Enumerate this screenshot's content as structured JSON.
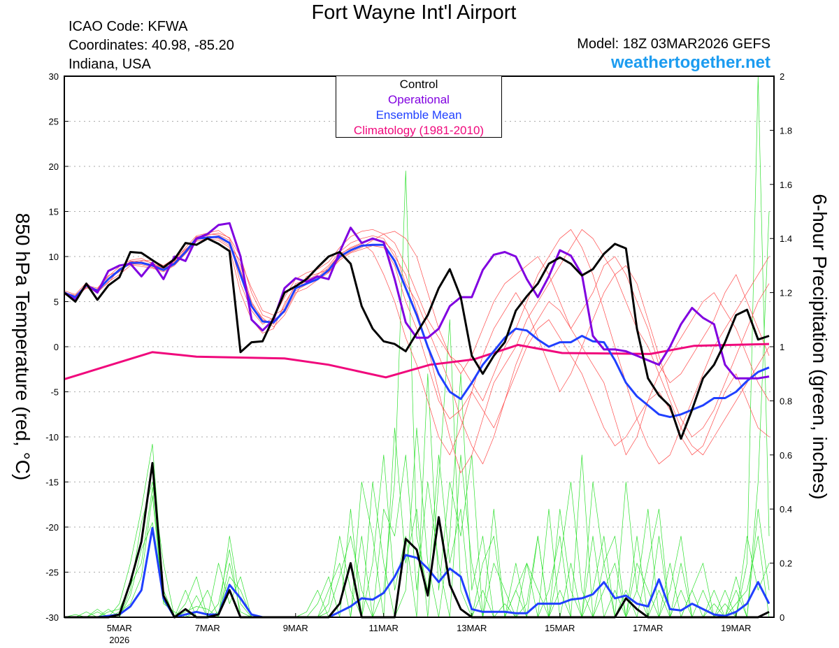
{
  "header": {
    "title": "Fort Wayne Int'l Airport",
    "icao": "ICAO Code: KFWA",
    "coordinates": "Coordinates: 40.98, -85.20",
    "region": "Indiana, USA",
    "model": "Model: 18Z 03MAR2026 GEFS",
    "site": "weathertogether.net"
  },
  "legend": {
    "control": "Control",
    "operational": "Operational",
    "mean": "Ensemble Mean",
    "climatology": "Climatology (1981-2010)"
  },
  "colors": {
    "control": "#000000",
    "operational": "#8000e0",
    "mean": "#2040ff",
    "climatology": "#f0087c",
    "member_temp": "#ff4a4a",
    "member_precip": "#2ee02e",
    "site": "#1c9cf0"
  },
  "chart_data": {
    "type": "line",
    "title": "Fort Wayne Int'l Airport",
    "ylabel": "850 hPa Temperature (red, °C)",
    "ylabel_right": "6-hour Precipitation (green, inches)",
    "ylim": [
      -30,
      30
    ],
    "ylim_right": [
      0,
      2
    ],
    "yticks": [
      "30",
      "25",
      "20",
      "15",
      "10",
      "5",
      "0",
      "-5",
      "-10",
      "-15",
      "-20",
      "-25",
      "-30"
    ],
    "yticks_right": [
      "2",
      "1.8",
      "1.6",
      "1.4",
      "1.2",
      "1",
      "0.8",
      "0.6",
      "0.4",
      "0.2",
      "0"
    ],
    "x_start": "03MAR2026 18Z",
    "x_step_hours": 6,
    "x_range_days": [
      0,
      16
    ],
    "xticks": [
      {
        "label": "5MAR",
        "day": 1.25,
        "sub": "2026"
      },
      {
        "label": "7MAR",
        "day": 3.25
      },
      {
        "label": "9MAR",
        "day": 5.25
      },
      {
        "label": "11MAR",
        "day": 7.25
      },
      {
        "label": "13MAR",
        "day": 9.25
      },
      {
        "label": "15MAR",
        "day": 11.25
      },
      {
        "label": "17MAR",
        "day": 13.25
      },
      {
        "label": "19MAR",
        "day": 15.25
      }
    ],
    "grid": true,
    "legend_position": "top-center",
    "temperature": {
      "control": [
        6,
        5,
        7,
        5.2,
        6.8,
        7.7,
        10.5,
        10.4,
        9.6,
        8.8,
        9.7,
        11.5,
        11.3,
        12,
        11.4,
        10.6,
        -0.6,
        0.5,
        0.6,
        3.2,
        6,
        6.7,
        7.5,
        8.8,
        10,
        10.5,
        9.2,
        4.5,
        2,
        0.6,
        0.3,
        -0.5,
        1.5,
        3.5,
        6.5,
        8.6,
        5.5,
        -1,
        -3,
        -1,
        0.5,
        4,
        5.6,
        7,
        9.2,
        9.9,
        9.2,
        7.9,
        8.6,
        10.3,
        11.4,
        10.9,
        2,
        -3.5,
        -5.4,
        -6.6,
        -10.2,
        -7,
        -3.5,
        -2,
        0.5,
        3.5,
        4.1,
        0.8,
        1.2
      ],
      "operational": [
        6,
        5.2,
        6.9,
        6,
        8.4,
        9,
        9.2,
        7.8,
        9.3,
        7.5,
        10,
        9.5,
        12,
        12.5,
        13.5,
        13.7,
        10,
        3,
        1.8,
        3,
        6.5,
        7.6,
        7.2,
        7.8,
        7.5,
        10.5,
        13.2,
        11.5,
        12,
        11.6,
        7.5,
        2.7,
        1,
        1,
        2,
        4.5,
        5.5,
        5.5,
        8.5,
        10.2,
        10.5,
        10,
        7.5,
        5.5,
        7.8,
        10.7,
        10.1,
        8,
        1.2,
        -0.3,
        -0.3,
        -0.5,
        -1,
        -1.5,
        -2,
        0,
        2.5,
        4.3,
        3.2,
        2.5,
        -2,
        -3.5,
        -3.5,
        -3.5,
        -3.3
      ],
      "mean": [
        6,
        5.5,
        6.8,
        6.2,
        7.5,
        8.5,
        9.3,
        9.3,
        9,
        8.5,
        9.2,
        10.5,
        12,
        12.1,
        12.2,
        11.5,
        8,
        4.5,
        2.8,
        2.7,
        4,
        6.5,
        7,
        7.5,
        8.5,
        10,
        10.7,
        11.2,
        11.3,
        11.3,
        9.5,
        6.5,
        3.5,
        0,
        -3,
        -5,
        -5.8,
        -4,
        -2,
        -0.5,
        1,
        2,
        1.8,
        0.8,
        0,
        0.5,
        0.5,
        1.2,
        0.6,
        0.5,
        -1.5,
        -4,
        -5.5,
        -6.5,
        -7.5,
        -7.8,
        -7.5,
        -7,
        -6.5,
        -5.7,
        -5.7,
        -5,
        -3.8,
        -2.8,
        -2.3
      ],
      "climatology": {
        "days": [
          0,
          2,
          3,
          5,
          6,
          7.3,
          8.3,
          9.3,
          10.3,
          11.3,
          13.3,
          14.3,
          16
        ],
        "values": [
          -3.6,
          -0.6,
          -1.1,
          -1.3,
          -2,
          -3.4,
          -2,
          -1.4,
          0.2,
          -0.7,
          -0.8,
          0.1,
          0.3
        ]
      },
      "members": [
        [
          6,
          5.6,
          6.5,
          6.4,
          7.8,
          8.9,
          9.6,
          9.8,
          9.2,
          8.8,
          9.5,
          11,
          12.3,
          12.6,
          12.9,
          12,
          9,
          5,
          3,
          2.5,
          4.5,
          7,
          7.4,
          8,
          9,
          10.5,
          11.5,
          12,
          12.3,
          12,
          10,
          8,
          4,
          0,
          -5,
          -10,
          -14,
          -12,
          -8,
          -4,
          -2,
          0,
          3,
          5,
          7,
          9,
          11,
          13,
          12,
          10,
          8,
          5,
          2,
          0,
          -3,
          -6,
          -9,
          -11,
          -12,
          -10,
          -8,
          -6,
          -4,
          -2,
          0
        ],
        [
          6.2,
          5.8,
          7.1,
          6,
          7.2,
          8,
          9,
          9.5,
          9.6,
          9,
          9.8,
          10.8,
          11.8,
          12.4,
          12.6,
          12.1,
          10,
          6,
          3.5,
          3,
          3.8,
          6,
          6.5,
          7.4,
          8.2,
          9.8,
          10.5,
          11,
          11.8,
          12.5,
          12.8,
          12,
          10,
          6,
          2,
          -1,
          -3,
          -1,
          2,
          5,
          7,
          8,
          9,
          10,
          8,
          5,
          2,
          0,
          -2,
          -4,
          -8,
          -12,
          -10,
          -6,
          -3,
          -1,
          1,
          3,
          5,
          6,
          4,
          2,
          -1,
          -4,
          -6
        ],
        [
          5.8,
          5.2,
          6.6,
          6.1,
          7.1,
          8.6,
          9.1,
          8.9,
          8.7,
          8.3,
          9,
          10.3,
          11.7,
          12,
          11.8,
          11,
          6,
          3,
          1.5,
          2,
          4.8,
          6.8,
          7.2,
          7.7,
          8.8,
          10.2,
          11,
          11.5,
          10.5,
          8,
          5,
          1,
          -2,
          -6,
          -10,
          -12,
          -9,
          -5,
          -1,
          2,
          4,
          6,
          4,
          1,
          -2,
          -5,
          -3,
          0,
          3,
          6,
          8,
          9,
          7,
          3,
          -1,
          -5,
          -8,
          -10,
          -9,
          -7,
          -4,
          -1,
          2,
          5,
          7
        ],
        [
          6.1,
          5.4,
          6.9,
          6.3,
          7.6,
          8.3,
          9.4,
          9.6,
          9.3,
          8.6,
          9.4,
          10.7,
          12.1,
          12.5,
          12.4,
          11.8,
          7,
          4,
          2.5,
          3.2,
          5.5,
          7.5,
          8.2,
          8.6,
          9.4,
          11,
          12.2,
          12.8,
          13,
          12.5,
          11.5,
          9,
          6,
          3,
          1,
          -1,
          -2,
          -4,
          -6,
          -3,
          0,
          2,
          5,
          8,
          10,
          12,
          13,
          11,
          8,
          4,
          0,
          -4,
          -8,
          -11,
          -13,
          -12,
          -9,
          -6,
          -3,
          0,
          2,
          4,
          6,
          8,
          10
        ],
        [
          5.9,
          5.5,
          6.7,
          6.2,
          7.4,
          8.7,
          9.2,
          9.1,
          8.8,
          8.4,
          9.1,
          10.4,
          11.9,
          12.2,
          12,
          11.2,
          9.5,
          6.5,
          4,
          3.5,
          4.2,
          6.2,
          6.9,
          7.6,
          8.3,
          9.6,
          10.4,
          10.8,
          11.2,
          11,
          9,
          5,
          2,
          -2,
          -6,
          -8,
          -7,
          -5,
          -7,
          -9,
          -6,
          -3,
          0,
          2,
          3,
          1,
          -1,
          -3,
          -6,
          -9,
          -11,
          -10,
          -8,
          -6,
          -5,
          -7,
          -10,
          -12,
          -11,
          -8,
          -5,
          -3,
          -6,
          -9,
          -10
        ],
        [
          6,
          5.7,
          6.8,
          6.5,
          7.9,
          8.4,
          9.5,
          9.4,
          9.1,
          8.7,
          9.3,
          10.6,
          12.2,
          12.3,
          12.1,
          11.6,
          8.5,
          4.8,
          3.2,
          2.2,
          3.5,
          5.8,
          7.8,
          8.1,
          8.6,
          10.3,
          10.9,
          11.4,
          12,
          11.7,
          10.5,
          7,
          5,
          2,
          -1,
          -4,
          -8,
          -11,
          -13,
          -10,
          -6,
          -2,
          1,
          3,
          5,
          4,
          2,
          4,
          6,
          9,
          10,
          8,
          5,
          2,
          -2,
          -4,
          -3,
          -1,
          1,
          3,
          6,
          8,
          5,
          2,
          -1
        ]
      ]
    },
    "precipitation": {
      "control": [
        0,
        0,
        0,
        0,
        0,
        0.01,
        0.13,
        0.28,
        0.57,
        0.08,
        0,
        0.03,
        0,
        0,
        0.01,
        0.1,
        0,
        0,
        0,
        0,
        0,
        0,
        0,
        0,
        0,
        0.05,
        0.2,
        0,
        0,
        0,
        0,
        0.29,
        0.25,
        0.08,
        0.37,
        0.12,
        0.03,
        0,
        0,
        0,
        0,
        0,
        0,
        0,
        0,
        0,
        0,
        0,
        0,
        0,
        0,
        0.07,
        0.03,
        0,
        0,
        0,
        0,
        0,
        0,
        0,
        0,
        0,
        0,
        0,
        0.02
      ],
      "mean": [
        0,
        0,
        0,
        0,
        0.005,
        0.01,
        0.04,
        0.1,
        0.33,
        0.07,
        0,
        0.01,
        0.02,
        0.01,
        0.01,
        0.12,
        0.07,
        0.01,
        0,
        0,
        0,
        0,
        0,
        0,
        0,
        0.02,
        0.04,
        0.07,
        0.065,
        0.09,
        0.15,
        0.23,
        0.22,
        0.18,
        0.13,
        0.18,
        0.15,
        0.03,
        0.02,
        0.02,
        0.02,
        0.015,
        0.015,
        0.05,
        0.05,
        0.05,
        0.065,
        0.07,
        0.085,
        0.13,
        0.07,
        0.08,
        0.05,
        0.04,
        0.14,
        0.03,
        0.025,
        0.05,
        0.03,
        0.01,
        0.005,
        0.02,
        0.05,
        0.13,
        0.05
      ],
      "members": [
        [
          0,
          0,
          0,
          0.02,
          0,
          0.05,
          0.2,
          0.4,
          0.64,
          0.1,
          0,
          0.1,
          0,
          0,
          0.05,
          0.25,
          0,
          0,
          0,
          0,
          0,
          0,
          0,
          0,
          0.1,
          0.2,
          0,
          0.3,
          0,
          0.1,
          0.5,
          1.65,
          0.3,
          0.1,
          0.6,
          0.2,
          0.4,
          0,
          0.1,
          0,
          0.05,
          0,
          0.2,
          0,
          0.1,
          0.3,
          0,
          0,
          0.5,
          0.2,
          0,
          0.1,
          0,
          0.2,
          0.4,
          0,
          0.1,
          0,
          0,
          0,
          0.1,
          0,
          0.2,
          2,
          0.3
        ],
        [
          0,
          0,
          0.02,
          0,
          0.03,
          0,
          0.1,
          0.35,
          0.5,
          0.2,
          0,
          0.05,
          0.15,
          0,
          0.2,
          0.05,
          0.15,
          0,
          0,
          0,
          0,
          0,
          0.02,
          0.1,
          0,
          0,
          0.4,
          0,
          0.2,
          0.6,
          0.1,
          0.3,
          0,
          0.9,
          0.1,
          0.5,
          0.3,
          0.6,
          0,
          0.2,
          0.1,
          0,
          0.05,
          0.3,
          0,
          0.1,
          0,
          0.6,
          0,
          0.1,
          0.2,
          0,
          0.3,
          0,
          0.1,
          0,
          0,
          0.1,
          0,
          0.05,
          0,
          0.15,
          0,
          0.5,
          1.5
        ],
        [
          0,
          0,
          0,
          0,
          0,
          0.02,
          0.05,
          0.15,
          0.45,
          0.05,
          0.02,
          0,
          0.02,
          0.1,
          0,
          0.3,
          0.05,
          0,
          0,
          0,
          0,
          0,
          0,
          0,
          0.05,
          0.3,
          0.1,
          0,
          0.5,
          0.2,
          0,
          0.1,
          0.7,
          0.2,
          0,
          0.3,
          0.9,
          0.1,
          0.3,
          0,
          0,
          0.2,
          0,
          0,
          0.4,
          0,
          0.2,
          0,
          0.1,
          0.3,
          0,
          0.5,
          0.1,
          0,
          0.3,
          0,
          0.2,
          0,
          0.1,
          0,
          0.05,
          0,
          0.3,
          0.1,
          0.2
        ],
        [
          0,
          0.01,
          0,
          0.03,
          0,
          0,
          0.08,
          0.25,
          0.35,
          0.1,
          0,
          0,
          0.08,
          0,
          0.02,
          0.15,
          0.1,
          0,
          0,
          0,
          0,
          0,
          0,
          0.05,
          0.15,
          0,
          0,
          0.5,
          0.3,
          0,
          0.7,
          0.2,
          0.4,
          0,
          0.5,
          1.1,
          0.1,
          0,
          0.2,
          0.3,
          0,
          0.1,
          0,
          0.3,
          0,
          0.4,
          0.1,
          0,
          0.3,
          0,
          0.1,
          0,
          0.2,
          0.1,
          0,
          0.1,
          0.3,
          0,
          0,
          0.1,
          0,
          0.05,
          0.1,
          0.3,
          0
        ],
        [
          0,
          0,
          0,
          0,
          0.02,
          0.03,
          0.12,
          0.2,
          0.48,
          0.06,
          0,
          0.02,
          0.04,
          0.03,
          0,
          0.2,
          0.02,
          0,
          0,
          0,
          0,
          0,
          0,
          0,
          0.02,
          0.15,
          0.3,
          0.1,
          0,
          0.4,
          0.3,
          0.6,
          0.1,
          0.5,
          0.2,
          0,
          0.6,
          0.2,
          0,
          0.4,
          0,
          0.1,
          0.2,
          0.1,
          0,
          0.2,
          0.5,
          0.1,
          0,
          0.2,
          0.3,
          0,
          0.1,
          0.4,
          0,
          0.2,
          0,
          0.1,
          0.2,
          0,
          0,
          0.1,
          0,
          0.4,
          0.1
        ]
      ]
    }
  },
  "axis_title_left": "850 hPa Temperature (red, °C)",
  "axis_title_right": "6-hour Precipitation (green, inches)"
}
